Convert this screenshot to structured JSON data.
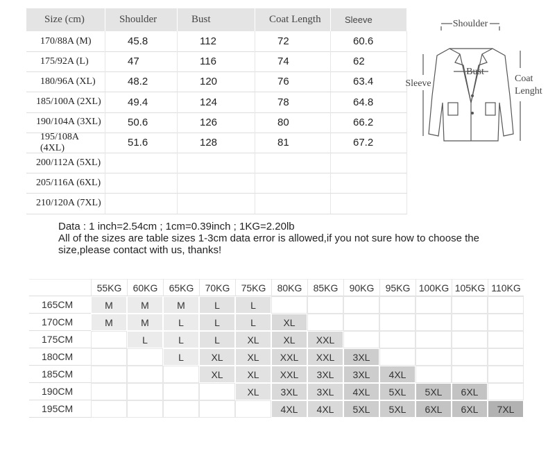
{
  "size_table": {
    "header": [
      "Size (cm)",
      "Shoulder",
      "Bust",
      "Coat Length",
      "Sleeve"
    ],
    "rows": [
      [
        "170/88A (M)",
        "45.8",
        "112",
        "72",
        "60.6"
      ],
      [
        "175/92A (L)",
        "47",
        "116",
        "74",
        "62"
      ],
      [
        "180/96A (XL)",
        "48.2",
        "120",
        "76",
        "63.4"
      ],
      [
        "185/100A (2XL)",
        "49.4",
        "124",
        "78",
        "64.8"
      ],
      [
        "190/104A (3XL)",
        "50.6",
        "126",
        "80",
        "66.2"
      ],
      [
        "195/108A (4XL)",
        "51.6",
        "128",
        "81",
        "67.2"
      ],
      [
        "200/112A (5XL)"
      ],
      [
        "205/116A (6XL)"
      ],
      [
        "210/120A (7XL)"
      ]
    ]
  },
  "diagram": {
    "shoulder": "Shoulder",
    "bust": "Bust",
    "sleeve": "Sleeve",
    "coat_length": [
      "Coat",
      "Lenght"
    ]
  },
  "notes": [
    "Data : 1 inch=2.54cm ; 1cm=0.39inch ; 1KG=2.20lb",
    "All of the sizes are table sizes 1-3cm data error is allowed,if you not sure how to choose the size,please contact with us, thanks!"
  ],
  "weight_table": {
    "weights": [
      "55KG",
      "60KG",
      "65KG",
      "70KG",
      "75KG",
      "80KG",
      "85KG",
      "90KG",
      "95KG",
      "100KG",
      "105KG",
      "110KG"
    ],
    "heights": [
      "165CM",
      "170CM",
      "175CM",
      "180CM",
      "185CM",
      "190CM",
      "195CM"
    ],
    "rows": [
      [
        "M",
        "M",
        "M",
        "L",
        "L",
        null,
        null,
        null,
        null,
        null,
        null,
        null
      ],
      [
        "M",
        "M",
        "L",
        "L",
        "L",
        "XL",
        null,
        null,
        null,
        null,
        null,
        null
      ],
      [
        null,
        "L",
        "L",
        "L",
        "XL",
        "XL",
        "XXL",
        null,
        null,
        null,
        null,
        null
      ],
      [
        null,
        null,
        "L",
        "XL",
        "XL",
        "XXL",
        "XXL",
        "3XL",
        null,
        null,
        null,
        null
      ],
      [
        null,
        null,
        null,
        "XL",
        "XL",
        "XXL",
        "3XL",
        "3XL",
        "4XL",
        null,
        null,
        null
      ],
      [
        null,
        null,
        null,
        null,
        "XL",
        "3XL",
        "3XL",
        "4XL",
        "5XL",
        "5XL",
        "6XL",
        null
      ],
      [
        null,
        null,
        null,
        null,
        null,
        "4XL",
        "4XL",
        "5XL",
        "5XL",
        "6XL",
        "6XL",
        "7XL"
      ]
    ]
  }
}
